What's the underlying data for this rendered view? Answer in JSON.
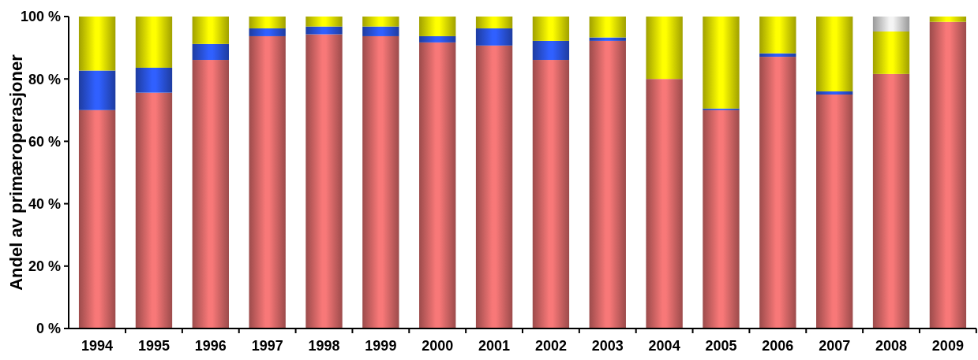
{
  "chart_data": {
    "type": "bar",
    "stacked": true,
    "ylabel": "Andel av primæroperasjoner",
    "categories": [
      "1994",
      "1995",
      "1996",
      "1997",
      "1998",
      "1999",
      "2000",
      "2001",
      "2002",
      "2003",
      "2004",
      "2005",
      "2006",
      "2007",
      "2008",
      "2009"
    ],
    "series": [
      {
        "color": "#f87878",
        "values": [
          70,
          75.6,
          86.1,
          93.7,
          94.3,
          93.7,
          91.7,
          90.7,
          86.1,
          92.2,
          80,
          70,
          87.1,
          75,
          81.6,
          98.3
        ]
      },
      {
        "color": "#3060ff",
        "values": [
          12.7,
          8,
          5.1,
          2.5,
          2.5,
          3.1,
          2,
          5.5,
          6.1,
          1.1,
          0,
          0.5,
          1.1,
          1,
          0,
          0
        ]
      },
      {
        "color": "#ffff00",
        "values": [
          17.3,
          16.4,
          8.8,
          3.8,
          3.2,
          3.2,
          6.3,
          3.8,
          7.8,
          6.7,
          20,
          29.5,
          11.8,
          24,
          13.6,
          1.7
        ]
      },
      {
        "color": "#f4f4f4",
        "values": [
          0,
          0,
          0,
          0,
          0,
          0,
          0,
          0,
          0,
          0,
          0,
          0,
          0,
          0,
          4.8,
          0
        ]
      }
    ],
    "ylim": [
      0,
      100
    ],
    "yticks": [
      {
        "value": 0,
        "label": "0 %"
      },
      {
        "value": 20,
        "label": "20 %"
      },
      {
        "value": 40,
        "label": "40 %"
      },
      {
        "value": 60,
        "label": "60 %"
      },
      {
        "value": 80,
        "label": "80 %"
      },
      {
        "value": 100,
        "label": "100 %"
      }
    ],
    "grid": false
  }
}
